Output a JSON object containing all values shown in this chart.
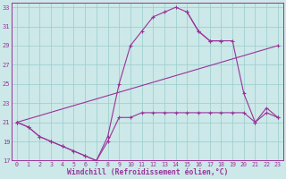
{
  "xlabel": "Windchill (Refroidissement éolien,°C)",
  "bg_color": "#cce8e8",
  "grid_color": "#99cccc",
  "line_color": "#993399",
  "xlim": [
    -0.5,
    23.5
  ],
  "ylim": [
    17,
    33.5
  ],
  "yticks": [
    17,
    19,
    21,
    23,
    25,
    27,
    29,
    31,
    33
  ],
  "xticks": [
    0,
    1,
    2,
    3,
    4,
    5,
    6,
    7,
    8,
    9,
    10,
    11,
    12,
    13,
    14,
    15,
    16,
    17,
    18,
    19,
    20,
    21,
    22,
    23
  ],
  "line1_x": [
    0,
    1,
    2,
    3,
    4,
    5,
    6,
    7,
    8,
    9,
    10,
    11,
    12,
    13,
    14,
    15,
    16,
    17,
    18,
    19,
    20,
    21,
    22,
    23
  ],
  "line1_y": [
    21.0,
    20.5,
    19.5,
    19.0,
    18.5,
    18.0,
    17.5,
    17.0,
    19.0,
    21.5,
    21.5,
    22.0,
    22.0,
    22.0,
    22.0,
    22.0,
    22.0,
    22.0,
    22.0,
    22.0,
    22.0,
    21.0,
    22.0,
    21.5
  ],
  "line2_x": [
    0,
    1,
    2,
    3,
    4,
    5,
    6,
    7,
    8,
    9,
    10,
    11,
    12,
    13,
    14,
    15,
    16,
    17,
    18
  ],
  "line2_y": [
    21.0,
    20.5,
    19.5,
    19.0,
    18.5,
    18.0,
    17.5,
    17.0,
    19.5,
    25.0,
    29.0,
    30.5,
    32.0,
    32.5,
    33.0,
    32.5,
    30.5,
    29.5,
    29.5
  ],
  "line3_x": [
    0,
    23
  ],
  "line3_y": [
    21.0,
    29.0
  ],
  "line4_x": [
    15,
    16,
    17,
    18,
    19,
    20,
    21,
    22,
    23
  ],
  "line4_y": [
    32.5,
    30.5,
    29.5,
    29.5,
    29.5,
    24.0,
    21.0,
    22.5,
    21.5
  ]
}
